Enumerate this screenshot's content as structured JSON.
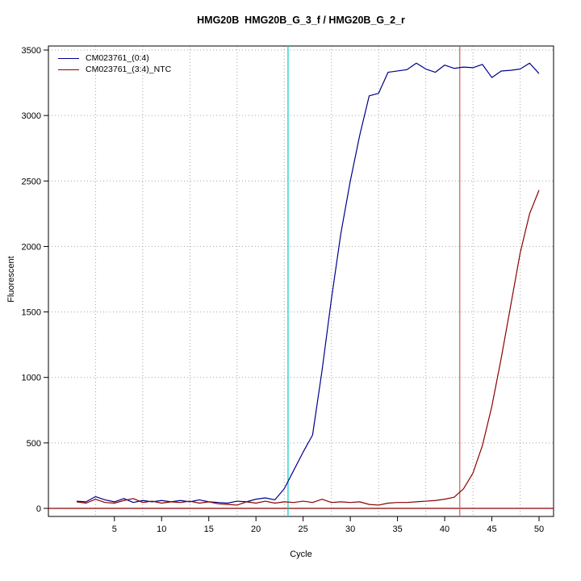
{
  "chart_data": {
    "type": "line",
    "title": "HMG20B  HMG20B_G_3_f / HMG20B_G_2_r",
    "xlabel": "Cycle",
    "ylabel": "Fluorescent",
    "xlim": [
      0,
      51.5
    ],
    "ylim": [
      -60,
      3530
    ],
    "x_ticks": [
      5,
      10,
      15,
      20,
      25,
      30,
      35,
      40,
      45,
      50
    ],
    "y_ticks": [
      0,
      500,
      1000,
      1500,
      2000,
      2500,
      3000,
      3500
    ],
    "x_gridlines": [
      3,
      8,
      13,
      18,
      23,
      28,
      33,
      38,
      43,
      48
    ],
    "y_gridlines": [
      0,
      500,
      1000,
      1500,
      2000,
      2500,
      3000,
      3500
    ],
    "grid_on": true,
    "grid_color": "#a3a3a3",
    "x": [
      1,
      2,
      3,
      4,
      5,
      6,
      7,
      8,
      9,
      10,
      11,
      12,
      13,
      14,
      15,
      16,
      17,
      18,
      19,
      20,
      21,
      22,
      23,
      24,
      25,
      26,
      27,
      28,
      29,
      30,
      31,
      32,
      33,
      34,
      35,
      36,
      37,
      38,
      39,
      40,
      41,
      42,
      43,
      44,
      45,
      46,
      47,
      48,
      49,
      50
    ],
    "series": [
      {
        "name": "CM023761_(0:4)",
        "color": "#00008B",
        "values": [
          55,
          50,
          90,
          65,
          50,
          75,
          45,
          60,
          50,
          60,
          50,
          60,
          50,
          65,
          50,
          45,
          40,
          55,
          50,
          70,
          80,
          65,
          150,
          290,
          430,
          560,
          1050,
          1600,
          2100,
          2500,
          2850,
          3150,
          3170,
          3330,
          3340,
          3350,
          3400,
          3355,
          3330,
          3385,
          3360,
          3370,
          3365,
          3390,
          3290,
          3340,
          3345,
          3355,
          3400,
          3320
        ]
      },
      {
        "name": "CM023761_(3:4)_NTC",
        "color": "#8B0000",
        "values": [
          50,
          40,
          70,
          45,
          40,
          60,
          75,
          45,
          55,
          40,
          50,
          45,
          55,
          40,
          50,
          35,
          30,
          25,
          50,
          40,
          55,
          40,
          50,
          45,
          55,
          45,
          70,
          45,
          50,
          45,
          50,
          30,
          25,
          40,
          45,
          45,
          50,
          55,
          60,
          70,
          85,
          150,
          270,
          480,
          780,
          1150,
          1550,
          1950,
          2250,
          2430
        ]
      }
    ],
    "threshold_lines": [
      {
        "orientation": "vertical",
        "x": 23.4,
        "color": "#00CCCC",
        "name": "ct-line-sample"
      },
      {
        "orientation": "vertical",
        "x": 41.6,
        "color": "#CD5C5C",
        "name": "ct-line-ntc"
      }
    ],
    "baseline": {
      "y": 0,
      "color": "#8B0000"
    },
    "legend": {
      "position": "top-left"
    }
  }
}
